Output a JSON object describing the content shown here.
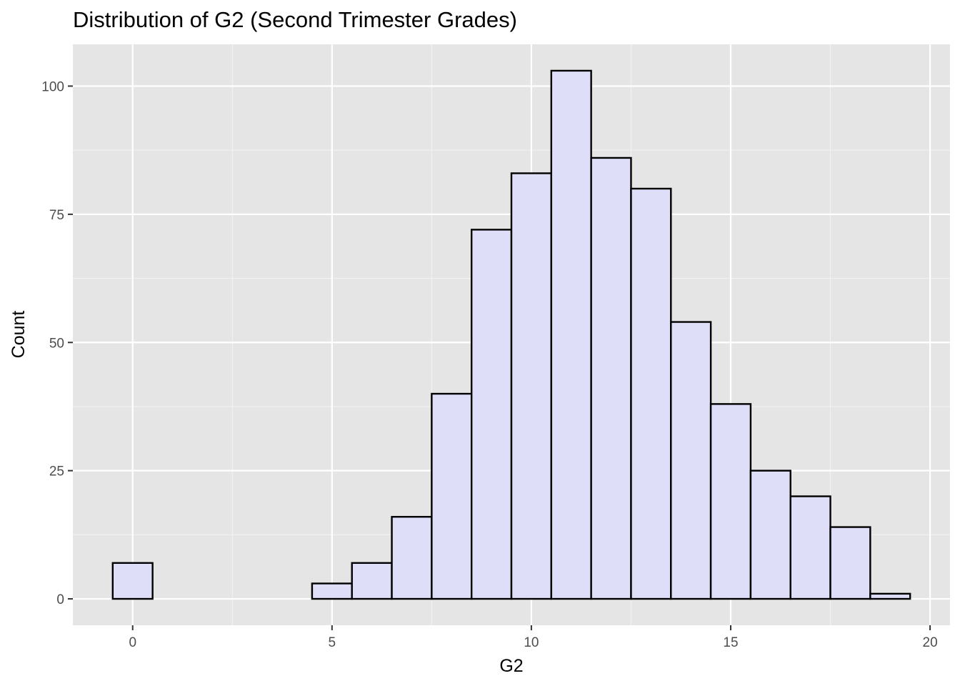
{
  "chart_data": {
    "type": "bar",
    "title": "Distribution of G2 (Second Trimester Grades)",
    "xlabel": "G2",
    "ylabel": "Count",
    "x": [
      0,
      1,
      2,
      3,
      4,
      5,
      6,
      7,
      8,
      9,
      10,
      11,
      12,
      13,
      14,
      15,
      16,
      17,
      18,
      19
    ],
    "values": [
      7,
      0,
      0,
      0,
      0,
      3,
      7,
      16,
      40,
      72,
      83,
      103,
      86,
      80,
      54,
      38,
      25,
      20,
      14,
      1
    ],
    "bin_width": 1,
    "xlim": [
      -1.5,
      20.5
    ],
    "ylim": [
      -5.15,
      108.15
    ],
    "x_ticks": [
      0,
      5,
      10,
      15,
      20
    ],
    "x_tick_labels": [
      "0",
      "5",
      "10",
      "15",
      "20"
    ],
    "y_ticks": [
      0,
      25,
      50,
      75,
      100
    ],
    "y_tick_labels": [
      "0",
      "25",
      "50",
      "75",
      "100"
    ],
    "grid": true,
    "colors": {
      "panel_background": "#e5e5e5",
      "grid_major": "#ffffff",
      "grid_minor": "#f2f2f2",
      "bar_fill": "#dedef8",
      "bar_outline": "#000000",
      "tick_text": "#4d4d4d"
    }
  }
}
